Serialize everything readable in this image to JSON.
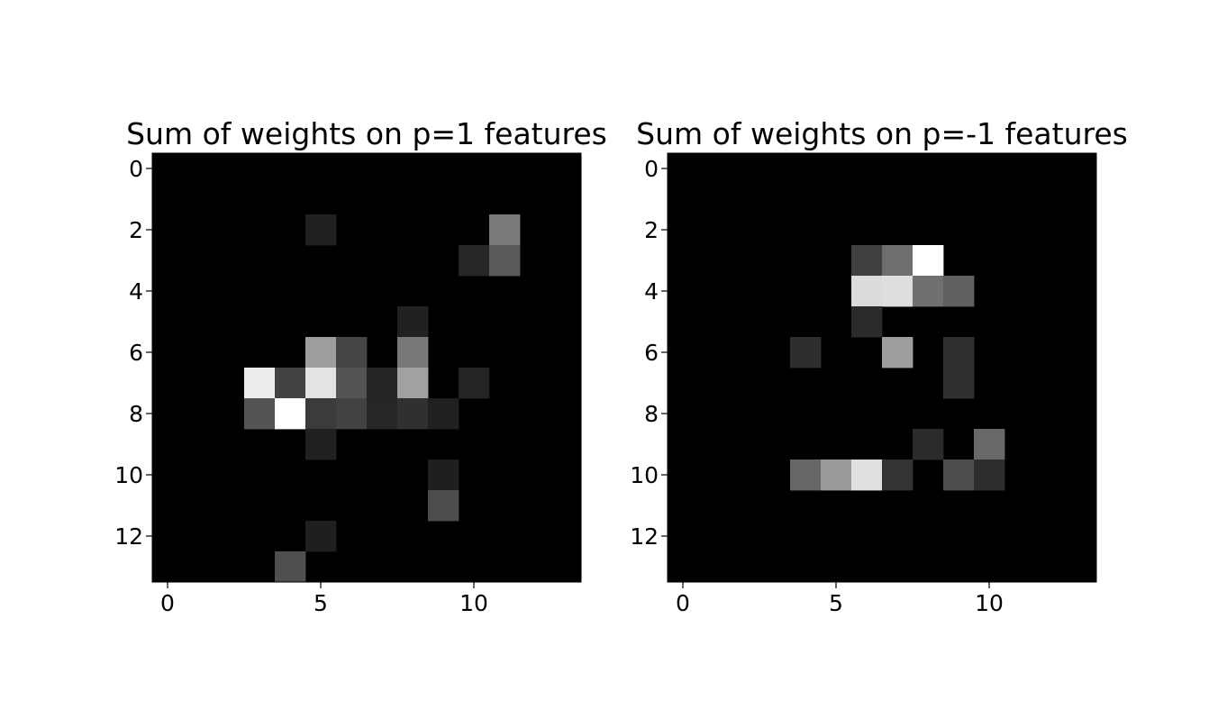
{
  "chart_data": [
    {
      "type": "heatmap",
      "title": "Sum of weights on p=1 features",
      "colormap": "gray",
      "xticks": [
        0,
        5,
        10
      ],
      "yticks": [
        0,
        2,
        4,
        6,
        8,
        10,
        12
      ],
      "xlim": [
        -0.5,
        13.5
      ],
      "ylim": [
        13.5,
        -0.5
      ],
      "grid": false,
      "cells": [
        {
          "row": 2,
          "col": 5,
          "value": 0.13
        },
        {
          "row": 2,
          "col": 11,
          "value": 0.48
        },
        {
          "row": 3,
          "col": 10,
          "value": 0.15
        },
        {
          "row": 3,
          "col": 11,
          "value": 0.35
        },
        {
          "row": 5,
          "col": 8,
          "value": 0.13
        },
        {
          "row": 6,
          "col": 5,
          "value": 0.62
        },
        {
          "row": 6,
          "col": 6,
          "value": 0.27
        },
        {
          "row": 6,
          "col": 8,
          "value": 0.47
        },
        {
          "row": 7,
          "col": 3,
          "value": 0.93
        },
        {
          "row": 7,
          "col": 4,
          "value": 0.26
        },
        {
          "row": 7,
          "col": 5,
          "value": 0.89
        },
        {
          "row": 7,
          "col": 6,
          "value": 0.33
        },
        {
          "row": 7,
          "col": 7,
          "value": 0.14
        },
        {
          "row": 7,
          "col": 8,
          "value": 0.63
        },
        {
          "row": 7,
          "col": 10,
          "value": 0.14
        },
        {
          "row": 8,
          "col": 3,
          "value": 0.33
        },
        {
          "row": 8,
          "col": 4,
          "value": 1.0
        },
        {
          "row": 8,
          "col": 5,
          "value": 0.23
        },
        {
          "row": 8,
          "col": 6,
          "value": 0.26
        },
        {
          "row": 8,
          "col": 7,
          "value": 0.15
        },
        {
          "row": 8,
          "col": 8,
          "value": 0.19
        },
        {
          "row": 8,
          "col": 9,
          "value": 0.13
        },
        {
          "row": 9,
          "col": 5,
          "value": 0.13
        },
        {
          "row": 10,
          "col": 9,
          "value": 0.12
        },
        {
          "row": 11,
          "col": 9,
          "value": 0.3
        },
        {
          "row": 12,
          "col": 5,
          "value": 0.12
        },
        {
          "row": 13,
          "col": 4,
          "value": 0.31
        }
      ]
    },
    {
      "type": "heatmap",
      "title": "Sum of weights on p=-1 features",
      "colormap": "gray",
      "xticks": [
        0,
        5,
        10
      ],
      "yticks": [
        0,
        2,
        4,
        6,
        8,
        10,
        12
      ],
      "xlim": [
        -0.5,
        13.5
      ],
      "ylim": [
        13.5,
        -0.5
      ],
      "grid": false,
      "cells": [
        {
          "row": 3,
          "col": 6,
          "value": 0.25
        },
        {
          "row": 3,
          "col": 7,
          "value": 0.43
        },
        {
          "row": 3,
          "col": 8,
          "value": 1.0
        },
        {
          "row": 4,
          "col": 6,
          "value": 0.86
        },
        {
          "row": 4,
          "col": 7,
          "value": 0.87
        },
        {
          "row": 4,
          "col": 8,
          "value": 0.44
        },
        {
          "row": 4,
          "col": 9,
          "value": 0.38
        },
        {
          "row": 5,
          "col": 6,
          "value": 0.17
        },
        {
          "row": 6,
          "col": 4,
          "value": 0.18
        },
        {
          "row": 6,
          "col": 7,
          "value": 0.62
        },
        {
          "row": 6,
          "col": 9,
          "value": 0.19
        },
        {
          "row": 7,
          "col": 9,
          "value": 0.19
        },
        {
          "row": 9,
          "col": 8,
          "value": 0.17
        },
        {
          "row": 9,
          "col": 10,
          "value": 0.41
        },
        {
          "row": 10,
          "col": 4,
          "value": 0.4
        },
        {
          "row": 10,
          "col": 5,
          "value": 0.6
        },
        {
          "row": 10,
          "col": 6,
          "value": 0.88
        },
        {
          "row": 10,
          "col": 7,
          "value": 0.2
        },
        {
          "row": 10,
          "col": 9,
          "value": 0.3
        },
        {
          "row": 10,
          "col": 10,
          "value": 0.18
        }
      ]
    }
  ]
}
